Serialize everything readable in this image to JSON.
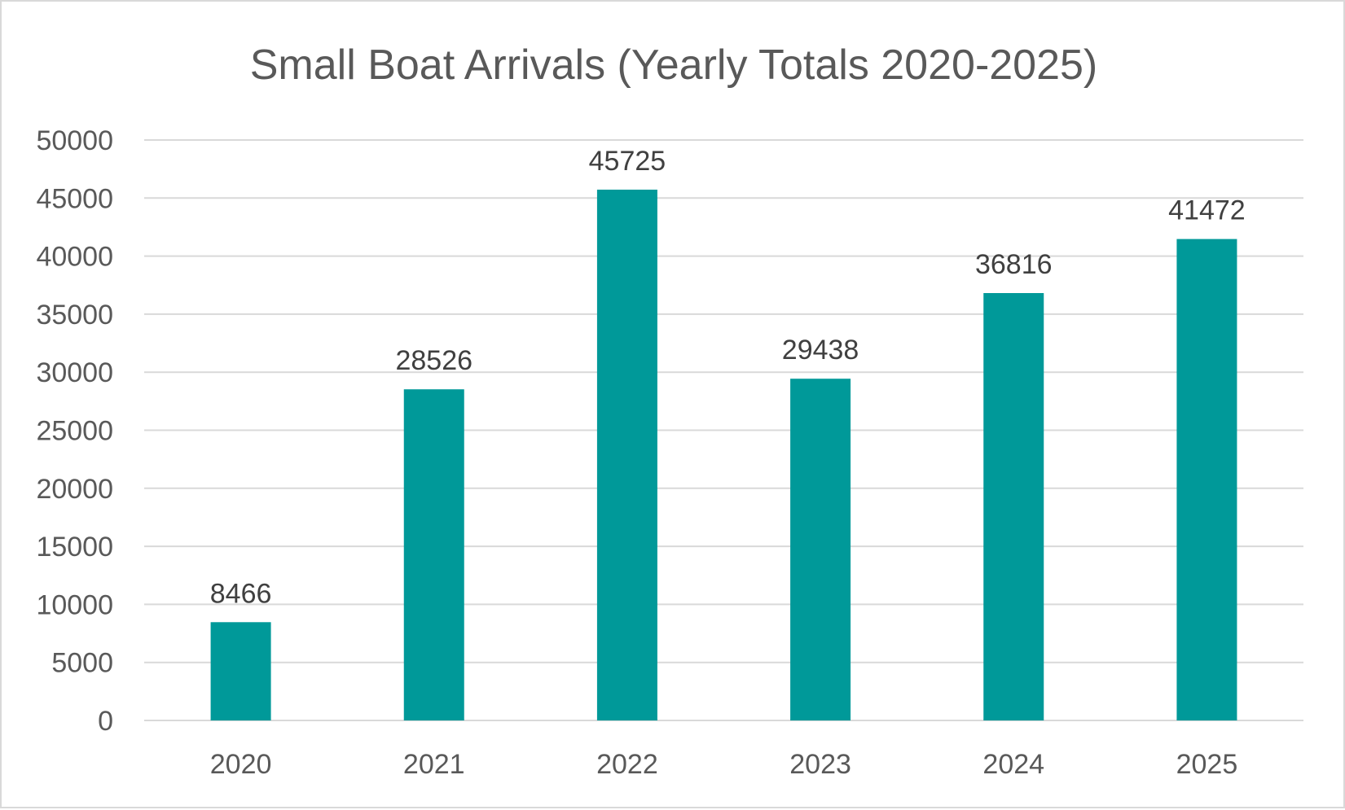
{
  "chart_data": {
    "type": "bar",
    "title": "Small Boat Arrivals (Yearly Totals 2020-2025)",
    "xlabel": "",
    "ylabel": "",
    "categories": [
      "2020",
      "2021",
      "2022",
      "2023",
      "2024",
      "2025"
    ],
    "series": [
      {
        "name": "Small Boat Arrivals",
        "values": [
          8466,
          28526,
          45725,
          29438,
          36816,
          41472
        ],
        "color": "#009999"
      }
    ],
    "ylim": [
      0,
      50000
    ],
    "yticks": [
      0,
      5000,
      10000,
      15000,
      20000,
      25000,
      30000,
      35000,
      40000,
      45000,
      50000
    ],
    "ytick_labels": [
      "0",
      "5000",
      "10000",
      "15000",
      "20000",
      "25000",
      "30000",
      "35000",
      "40000",
      "45000",
      "50000"
    ],
    "data_labels": [
      "8466",
      "28526",
      "45725",
      "29438",
      "36816",
      "41472"
    ],
    "grid": true,
    "legend": "none"
  }
}
